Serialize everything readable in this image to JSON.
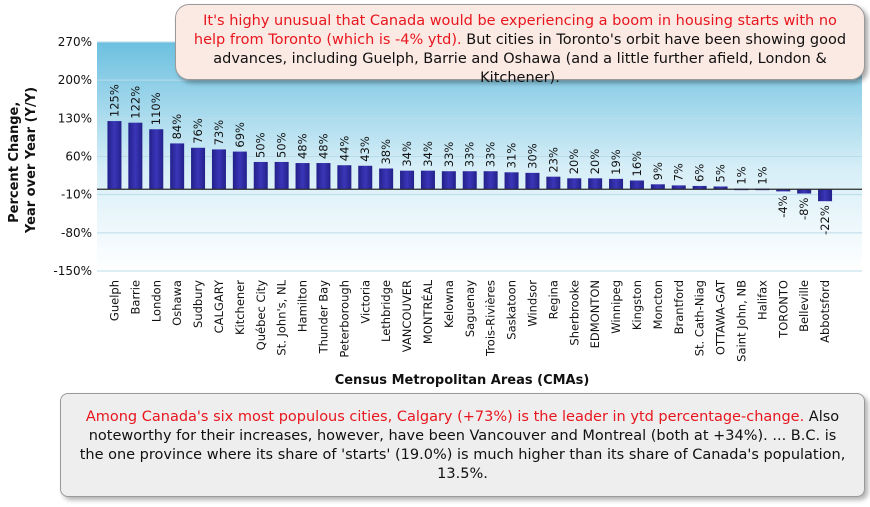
{
  "chart_data": {
    "type": "bar",
    "xlabel": "Census Metropolitan Areas (CMAs)",
    "ylabel_lines": [
      "Percent Change,",
      "Year over Year (Y/Y)"
    ],
    "ylim": [
      -150,
      270
    ],
    "yticks": [
      270,
      200,
      130,
      60,
      -10,
      -80,
      -150
    ],
    "ytick_labels": [
      "270%",
      "200%",
      "130%",
      "60%",
      "-10%",
      "-80%",
      "-150%"
    ],
    "bar_color": "#2e2aa0",
    "plot_bg_color": "#7ec8e3",
    "categories": [
      "Guelph",
      "Barrie",
      "London",
      "Oshawa",
      "Sudbury",
      "CALGARY",
      "Kitchener",
      "Québec City",
      "St. John's, NL",
      "Hamilton",
      "Thunder Bay",
      "Peterborough",
      "Victoria",
      "Lethbridge",
      "VANCOUVER",
      "MONTRÉAL",
      "Kelowna",
      "Saguenay",
      "Trois-Rivières",
      "Saskatoon",
      "Windsor",
      "Regina",
      "Sherbrooke",
      "EDMONTON",
      "Winnipeg",
      "Kingston",
      "Moncton",
      "Brantford",
      "St. Cath-Niag",
      "OTTAWA-GAT",
      "Saint John, NB",
      "Halifax",
      "TORONTO",
      "Belleville",
      "Abbotsford"
    ],
    "values": [
      125,
      122,
      110,
      84,
      76,
      73,
      69,
      50,
      50,
      48,
      48,
      44,
      43,
      38,
      34,
      34,
      33,
      33,
      33,
      31,
      30,
      23,
      20,
      20,
      19,
      16,
      9,
      7,
      6,
      5,
      1,
      1,
      -4,
      -8,
      -22
    ],
    "value_labels": [
      "125%",
      "122%",
      "110%",
      "84%",
      "76%",
      "73%",
      "69%",
      "50%",
      "50%",
      "48%",
      "48%",
      "44%",
      "43%",
      "38%",
      "34%",
      "34%",
      "33%",
      "33%",
      "33%",
      "31%",
      "30%",
      "23%",
      "20%",
      "20%",
      "19%",
      "16%",
      "9%",
      "7%",
      "6%",
      "5%",
      "1%",
      "1%",
      "-4%",
      "-8%",
      "-22%"
    ]
  },
  "annotations": {
    "top_red": "It's highy unusual that Canada would be experiencing a boom in housing starts with no help from Toronto (which is -4% ytd).",
    "top_black": " But cities in Toronto's orbit have been showing good advances, including Guelph, Barrie and Oshawa (and a little further afield, London & Kitchener).",
    "bottom_red": "Among Canada's six most populous cities, Calgary (+73%) is the leader in ytd percentage-change.",
    "bottom_black": " Also noteworthy for their increases, however, have been Vancouver and Montreal (both at +34%). ... B.C. is the one province where its share of 'starts' (19.0%) is much higher than its share of Canada's population, 13.5%."
  }
}
